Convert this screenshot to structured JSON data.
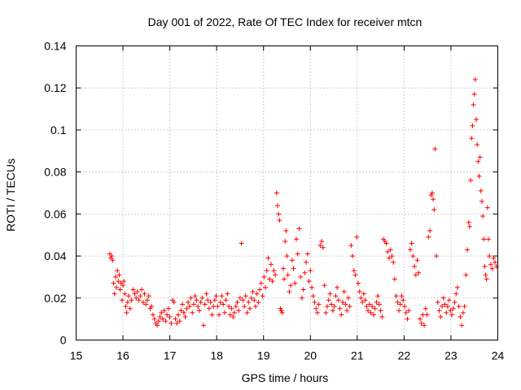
{
  "chart_data": {
    "type": "scatter",
    "title": "Day 001 of 2022, Rate Of TEC Index for receiver mtcn",
    "xlabel": "GPS time / hours",
    "ylabel": "ROTI / TECUs",
    "xlim": [
      15,
      24
    ],
    "ylim": [
      0,
      0.14
    ],
    "xticks": [
      "15",
      "16",
      "17",
      "18",
      "19",
      "20",
      "21",
      "22",
      "23",
      "24"
    ],
    "yticks": [
      "0",
      "0.02",
      "0.04",
      "0.06",
      "0.08",
      "0.1",
      "0.12",
      "0.14"
    ],
    "grid": true,
    "marker": "+",
    "color": "#ff0000",
    "series": [
      {
        "points": [
          [
            15.72,
            0.041
          ],
          [
            15.74,
            0.039
          ],
          [
            15.76,
            0.04
          ],
          [
            15.78,
            0.038
          ],
          [
            15.8,
            0.027
          ],
          [
            15.82,
            0.022
          ],
          [
            15.84,
            0.03
          ],
          [
            15.86,
            0.025
          ],
          [
            15.88,
            0.033
          ],
          [
            15.9,
            0.028
          ],
          [
            15.92,
            0.031
          ],
          [
            15.94,
            0.024
          ],
          [
            15.96,
            0.027
          ],
          [
            15.98,
            0.019
          ],
          [
            16.0,
            0.026
          ],
          [
            16.02,
            0.028
          ],
          [
            16.04,
            0.022
          ],
          [
            16.06,
            0.016
          ],
          [
            16.08,
            0.013
          ],
          [
            16.1,
            0.018
          ],
          [
            16.12,
            0.021
          ],
          [
            16.15,
            0.015
          ],
          [
            16.18,
            0.019
          ],
          [
            16.22,
            0.024
          ],
          [
            16.25,
            0.022
          ],
          [
            16.28,
            0.02
          ],
          [
            16.31,
            0.023
          ],
          [
            16.34,
            0.019
          ],
          [
            16.37,
            0.021
          ],
          [
            16.4,
            0.024
          ],
          [
            16.43,
            0.018
          ],
          [
            16.46,
            0.022
          ],
          [
            16.49,
            0.017
          ],
          [
            16.52,
            0.019
          ],
          [
            16.55,
            0.021
          ],
          [
            16.58,
            0.015
          ],
          [
            16.61,
            0.016
          ],
          [
            16.64,
            0.012
          ],
          [
            16.67,
            0.01
          ],
          [
            16.7,
            0.008
          ],
          [
            16.73,
            0.007
          ],
          [
            16.76,
            0.009
          ],
          [
            16.79,
            0.011
          ],
          [
            16.82,
            0.013
          ],
          [
            16.85,
            0.01
          ],
          [
            16.88,
            0.014
          ],
          [
            16.91,
            0.009
          ],
          [
            16.94,
            0.012
          ],
          [
            16.97,
            0.015
          ],
          [
            17.0,
            0.011
          ],
          [
            17.03,
            0.008
          ],
          [
            17.06,
            0.019
          ],
          [
            17.09,
            0.018
          ],
          [
            17.12,
            0.01
          ],
          [
            17.15,
            0.008
          ],
          [
            17.18,
            0.012
          ],
          [
            17.21,
            0.009
          ],
          [
            17.24,
            0.014
          ],
          [
            17.27,
            0.017
          ],
          [
            17.3,
            0.013
          ],
          [
            17.33,
            0.011
          ],
          [
            17.36,
            0.015
          ],
          [
            17.39,
            0.018
          ],
          [
            17.42,
            0.016
          ],
          [
            17.45,
            0.02
          ],
          [
            17.48,
            0.013
          ],
          [
            17.51,
            0.017
          ],
          [
            17.54,
            0.021
          ],
          [
            17.57,
            0.019
          ],
          [
            17.6,
            0.016
          ],
          [
            17.63,
            0.014
          ],
          [
            17.66,
            0.018
          ],
          [
            17.69,
            0.02
          ],
          [
            17.72,
            0.007
          ],
          [
            17.75,
            0.017
          ],
          [
            17.78,
            0.022
          ],
          [
            17.81,
            0.019
          ],
          [
            17.84,
            0.015
          ],
          [
            17.87,
            0.018
          ],
          [
            17.9,
            0.012
          ],
          [
            17.93,
            0.016
          ],
          [
            17.96,
            0.019
          ],
          [
            17.99,
            0.021
          ],
          [
            18.02,
            0.016
          ],
          [
            18.05,
            0.012
          ],
          [
            18.08,
            0.018
          ],
          [
            18.11,
            0.021
          ],
          [
            18.14,
            0.017
          ],
          [
            18.17,
            0.013
          ],
          [
            18.2,
            0.019
          ],
          [
            18.23,
            0.022
          ],
          [
            18.26,
            0.016
          ],
          [
            18.29,
            0.012
          ],
          [
            18.32,
            0.015
          ],
          [
            18.35,
            0.011
          ],
          [
            18.38,
            0.013
          ],
          [
            18.41,
            0.016
          ],
          [
            18.44,
            0.018
          ],
          [
            18.47,
            0.014
          ],
          [
            18.5,
            0.02
          ],
          [
            18.53,
            0.046
          ],
          [
            18.56,
            0.019
          ],
          [
            18.59,
            0.016
          ],
          [
            18.62,
            0.021
          ],
          [
            18.65,
            0.013
          ],
          [
            18.68,
            0.018
          ],
          [
            18.71,
            0.015
          ],
          [
            18.74,
            0.02
          ],
          [
            18.77,
            0.023
          ],
          [
            18.8,
            0.019
          ],
          [
            18.83,
            0.016
          ],
          [
            18.86,
            0.022
          ],
          [
            18.89,
            0.018
          ],
          [
            18.92,
            0.024
          ],
          [
            18.95,
            0.027
          ],
          [
            18.98,
            0.021
          ],
          [
            19.01,
            0.03
          ],
          [
            19.04,
            0.025
          ],
          [
            19.07,
            0.033
          ],
          [
            19.1,
            0.039
          ],
          [
            19.13,
            0.029
          ],
          [
            19.16,
            0.036
          ],
          [
            19.19,
            0.028
          ],
          [
            19.22,
            0.033
          ],
          [
            19.25,
            0.031
          ],
          [
            19.28,
            0.07
          ],
          [
            19.3,
            0.064
          ],
          [
            19.32,
            0.06
          ],
          [
            19.34,
            0.057
          ],
          [
            19.36,
            0.015
          ],
          [
            19.38,
            0.014
          ],
          [
            19.4,
            0.013
          ],
          [
            19.42,
            0.034
          ],
          [
            19.44,
            0.029
          ],
          [
            19.46,
            0.047
          ],
          [
            19.48,
            0.052
          ],
          [
            19.5,
            0.04
          ],
          [
            19.52,
            0.031
          ],
          [
            19.55,
            0.023
          ],
          [
            19.58,
            0.026
          ],
          [
            19.61,
            0.038
          ],
          [
            19.64,
            0.034
          ],
          [
            19.67,
            0.027
          ],
          [
            19.7,
            0.048
          ],
          [
            19.73,
            0.041
          ],
          [
            19.76,
            0.053
          ],
          [
            19.79,
            0.03
          ],
          [
            19.82,
            0.02
          ],
          [
            19.85,
            0.024
          ],
          [
            19.88,
            0.032
          ],
          [
            19.91,
            0.037
          ],
          [
            19.94,
            0.041
          ],
          [
            19.97,
            0.028
          ],
          [
            20.0,
            0.033
          ],
          [
            20.03,
            0.025
          ],
          [
            20.06,
            0.021
          ],
          [
            20.09,
            0.018
          ],
          [
            20.12,
            0.015
          ],
          [
            20.15,
            0.013
          ],
          [
            20.18,
            0.017
          ],
          [
            20.21,
            0.045
          ],
          [
            20.24,
            0.047
          ],
          [
            20.27,
            0.044
          ],
          [
            20.3,
            0.026
          ],
          [
            20.33,
            0.013
          ],
          [
            20.36,
            0.016
          ],
          [
            20.39,
            0.019
          ],
          [
            20.42,
            0.022
          ],
          [
            20.45,
            0.017
          ],
          [
            20.48,
            0.014
          ],
          [
            20.51,
            0.016
          ],
          [
            20.54,
            0.021
          ],
          [
            20.57,
            0.025
          ],
          [
            20.6,
            0.019
          ],
          [
            20.63,
            0.015
          ],
          [
            20.66,
            0.012
          ],
          [
            20.69,
            0.018
          ],
          [
            20.72,
            0.023
          ],
          [
            20.75,
            0.017
          ],
          [
            20.78,
            0.014
          ],
          [
            20.81,
            0.02
          ],
          [
            20.84,
            0.016
          ],
          [
            20.87,
            0.045
          ],
          [
            20.9,
            0.04
          ],
          [
            20.93,
            0.033
          ],
          [
            20.96,
            0.031
          ],
          [
            20.99,
            0.049
          ],
          [
            21.02,
            0.027
          ],
          [
            21.05,
            0.023
          ],
          [
            21.08,
            0.02
          ],
          [
            21.11,
            0.018
          ],
          [
            21.14,
            0.022
          ],
          [
            21.17,
            0.019
          ],
          [
            21.2,
            0.016
          ],
          [
            21.23,
            0.014
          ],
          [
            21.26,
            0.017
          ],
          [
            21.29,
            0.013
          ],
          [
            21.32,
            0.016
          ],
          [
            21.35,
            0.012
          ],
          [
            21.38,
            0.015
          ],
          [
            21.41,
            0.018
          ],
          [
            21.44,
            0.021
          ],
          [
            21.47,
            0.017
          ],
          [
            21.5,
            0.014
          ],
          [
            21.53,
            0.011
          ],
          [
            21.56,
            0.048
          ],
          [
            21.59,
            0.047
          ],
          [
            21.62,
            0.046
          ],
          [
            21.65,
            0.042
          ],
          [
            21.68,
            0.039
          ],
          [
            21.71,
            0.043
          ],
          [
            21.74,
            0.04
          ],
          [
            21.77,
            0.037
          ],
          [
            21.8,
            0.029
          ],
          [
            21.83,
            0.021
          ],
          [
            21.86,
            0.018
          ],
          [
            21.89,
            0.014
          ],
          [
            21.92,
            0.017
          ],
          [
            21.95,
            0.021
          ],
          [
            21.98,
            0.019
          ],
          [
            22.01,
            0.016
          ],
          [
            22.04,
            0.013
          ],
          [
            22.07,
            0.01
          ],
          [
            22.1,
            0.014
          ],
          [
            22.13,
            0.043
          ],
          [
            22.16,
            0.046
          ],
          [
            22.19,
            0.04
          ],
          [
            22.22,
            0.035
          ],
          [
            22.25,
            0.031
          ],
          [
            22.28,
            0.038
          ],
          [
            22.31,
            0.032
          ],
          [
            22.34,
            0.01
          ],
          [
            22.37,
            0.008
          ],
          [
            22.4,
            0.012
          ],
          [
            22.43,
            0.007
          ],
          [
            22.46,
            0.015
          ],
          [
            22.49,
            0.012
          ],
          [
            22.52,
            0.049
          ],
          [
            22.55,
            0.052
          ],
          [
            22.58,
            0.069
          ],
          [
            22.6,
            0.07
          ],
          [
            22.62,
            0.067
          ],
          [
            22.64,
            0.062
          ],
          [
            22.66,
            0.091
          ],
          [
            22.69,
            0.04
          ],
          [
            22.72,
            0.018
          ],
          [
            22.75,
            0.014
          ],
          [
            22.78,
            0.011
          ],
          [
            22.81,
            0.016
          ],
          [
            22.84,
            0.02
          ],
          [
            22.87,
            0.017
          ],
          [
            22.9,
            0.013
          ],
          [
            22.93,
            0.016
          ],
          [
            22.96,
            0.019
          ],
          [
            22.99,
            0.014
          ],
          [
            23.02,
            0.012
          ],
          [
            23.05,
            0.015
          ],
          [
            23.08,
            0.018
          ],
          [
            23.11,
            0.022
          ],
          [
            23.14,
            0.025
          ],
          [
            23.17,
            0.016
          ],
          [
            23.2,
            0.011
          ],
          [
            23.23,
            0.007
          ],
          [
            23.26,
            0.013
          ],
          [
            23.29,
            0.016
          ],
          [
            23.32,
            0.031
          ],
          [
            23.35,
            0.043
          ],
          [
            23.38,
            0.056
          ],
          [
            23.4,
            0.054
          ],
          [
            23.42,
            0.076
          ],
          [
            23.44,
            0.096
          ],
          [
            23.46,
            0.102
          ],
          [
            23.48,
            0.112
          ],
          [
            23.5,
            0.117
          ],
          [
            23.52,
            0.124
          ],
          [
            23.54,
            0.105
          ],
          [
            23.56,
            0.093
          ],
          [
            23.58,
            0.085
          ],
          [
            23.6,
            0.078
          ],
          [
            23.62,
            0.087
          ],
          [
            23.64,
            0.071
          ],
          [
            23.66,
            0.066
          ],
          [
            23.68,
            0.059
          ],
          [
            23.7,
            0.048
          ],
          [
            23.72,
            0.035
          ],
          [
            23.74,
            0.031
          ],
          [
            23.76,
            0.029
          ],
          [
            23.78,
            0.063
          ],
          [
            23.8,
            0.048
          ],
          [
            23.82,
            0.04
          ],
          [
            23.85,
            0.036
          ],
          [
            23.88,
            0.034
          ],
          [
            23.91,
            0.039
          ],
          [
            23.94,
            0.037
          ],
          [
            23.97,
            0.035
          ]
        ]
      }
    ]
  }
}
